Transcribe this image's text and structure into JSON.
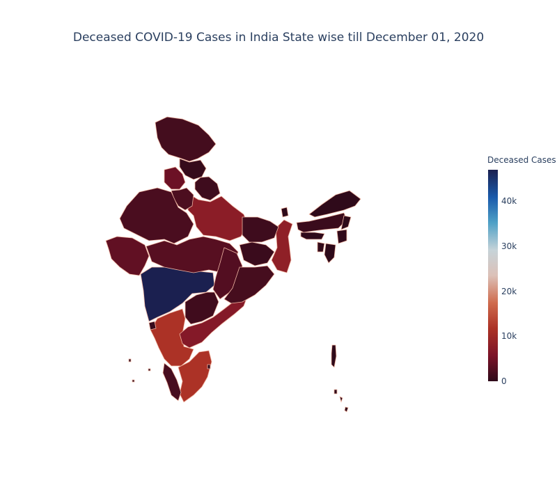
{
  "title": "Deceased COVID-19 Cases in India State wise till December 01, 2020",
  "colorbar": {
    "title": "Deceased Cases",
    "min": 0,
    "max": 47000,
    "ticks": [
      {
        "value": 0,
        "label": "0"
      },
      {
        "value": 10000,
        "label": "10k"
      },
      {
        "value": 20000,
        "label": "20k"
      },
      {
        "value": 30000,
        "label": "30k"
      },
      {
        "value": 40000,
        "label": "40k"
      }
    ],
    "colorscale": [
      "#2e0a1a",
      "#7b1328",
      "#ac3226",
      "#cf6b4d",
      "#dcc1b8",
      "#c6d3d8",
      "#4ea0c6",
      "#1a5aab",
      "#1b2050"
    ]
  },
  "chart_data": {
    "type": "choropleth",
    "value_label": "Deceased Cases",
    "regions": [
      {
        "name": "Maharashtra",
        "value": 47000
      },
      {
        "name": "Karnataka",
        "value": 11700
      },
      {
        "name": "Tamil Nadu",
        "value": 11700
      },
      {
        "name": "Andhra Pradesh",
        "value": 7000
      },
      {
        "name": "West Bengal",
        "value": 8300
      },
      {
        "name": "Uttar Pradesh",
        "value": 7800
      },
      {
        "name": "Delhi",
        "value": 8600
      },
      {
        "name": "Punjab",
        "value": 4700
      },
      {
        "name": "Gujarat",
        "value": 3900
      },
      {
        "name": "Madhya Pradesh",
        "value": 3100
      },
      {
        "name": "Chhattisgarh",
        "value": 2800
      },
      {
        "name": "Haryana",
        "value": 2300
      },
      {
        "name": "Rajasthan",
        "value": 2100
      },
      {
        "name": "Odisha",
        "value": 1800
      },
      {
        "name": "Telangana",
        "value": 1400
      },
      {
        "name": "Kerala",
        "value": 2000
      },
      {
        "name": "Jharkhand",
        "value": 950
      },
      {
        "name": "Bihar",
        "value": 1200
      },
      {
        "name": "Jammu & Kashmir",
        "value": 1700
      },
      {
        "name": "Uttarakhand",
        "value": 1200
      },
      {
        "name": "Himachal Pradesh",
        "value": 600
      },
      {
        "name": "Assam",
        "value": 950
      },
      {
        "name": "Goa",
        "value": 700
      },
      {
        "name": "Arunachal Pradesh",
        "value": 50
      },
      {
        "name": "Meghalaya",
        "value": 90
      },
      {
        "name": "Nagaland",
        "value": 60
      },
      {
        "name": "Manipur",
        "value": 250
      },
      {
        "name": "Mizoram",
        "value": 1
      },
      {
        "name": "Tripura",
        "value": 360
      },
      {
        "name": "Sikkim",
        "value": 100
      },
      {
        "name": "Puducherry",
        "value": 610
      },
      {
        "name": "Lakshadweep",
        "value": 0
      },
      {
        "name": "Andaman & Nicobar",
        "value": 60
      }
    ]
  }
}
